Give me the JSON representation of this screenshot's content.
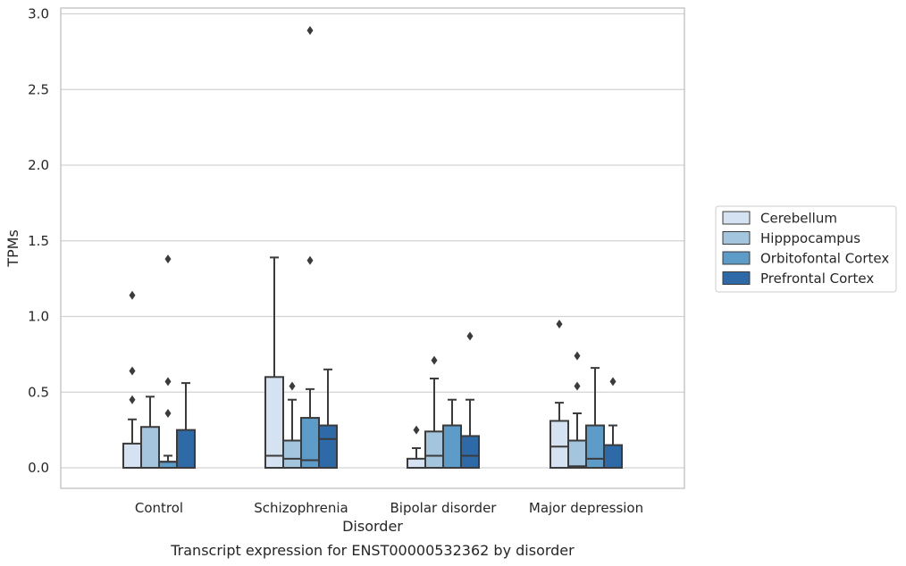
{
  "chart_data": {
    "type": "box",
    "title": "Transcript expression for ENST00000532362 by disorder",
    "xlabel": "Disorder",
    "ylabel": "TPMs",
    "ylim": [
      -0.14,
      3.04
    ],
    "yticks": [
      0.0,
      0.5,
      1.0,
      1.5,
      2.0,
      2.5,
      3.0
    ],
    "ytick_labels": [
      "0.0",
      "0.5",
      "1.0",
      "1.5",
      "2.0",
      "2.5",
      "3.0"
    ],
    "grid": "horizontal",
    "legend_position": "right",
    "categories": [
      "Control",
      "Schizophrenia",
      "Bipolar disorder",
      "Major depression"
    ],
    "series": [
      {
        "name": "Cerebellum",
        "color": "#d4e2f1",
        "boxes": [
          {
            "q1": 0.0,
            "median": 0.0,
            "q3": 0.16,
            "whisker_low": 0.0,
            "whisker_high": 0.32,
            "outliers": [
              0.45,
              0.64,
              1.14
            ]
          },
          {
            "q1": 0.0,
            "median": 0.08,
            "q3": 0.6,
            "whisker_low": 0.0,
            "whisker_high": 1.39,
            "outliers": []
          },
          {
            "q1": 0.0,
            "median": 0.0,
            "q3": 0.06,
            "whisker_low": 0.0,
            "whisker_high": 0.13,
            "outliers": [
              0.25
            ]
          },
          {
            "q1": 0.0,
            "median": 0.14,
            "q3": 0.31,
            "whisker_low": 0.0,
            "whisker_high": 0.43,
            "outliers": [
              0.95
            ]
          }
        ]
      },
      {
        "name": "Hipppocampus",
        "color": "#a3c5de",
        "boxes": [
          {
            "q1": 0.0,
            "median": 0.0,
            "q3": 0.27,
            "whisker_low": 0.0,
            "whisker_high": 0.47,
            "outliers": []
          },
          {
            "q1": 0.0,
            "median": 0.06,
            "q3": 0.18,
            "whisker_low": 0.0,
            "whisker_high": 0.45,
            "outliers": [
              0.54
            ]
          },
          {
            "q1": 0.0,
            "median": 0.08,
            "q3": 0.24,
            "whisker_low": 0.0,
            "whisker_high": 0.59,
            "outliers": [
              0.71
            ]
          },
          {
            "q1": 0.0,
            "median": 0.01,
            "q3": 0.18,
            "whisker_low": 0.0,
            "whisker_high": 0.36,
            "outliers": [
              0.54,
              0.74
            ]
          }
        ]
      },
      {
        "name": "Orbitofontal Cortex",
        "color": "#5d9bc9",
        "boxes": [
          {
            "q1": 0.0,
            "median": 0.04,
            "q3": 0.04,
            "whisker_low": 0.0,
            "whisker_high": 0.08,
            "outliers": [
              0.36,
              0.57,
              1.38
            ]
          },
          {
            "q1": 0.0,
            "median": 0.05,
            "q3": 0.33,
            "whisker_low": 0.0,
            "whisker_high": 0.52,
            "outliers": [
              1.37,
              2.89
            ]
          },
          {
            "q1": 0.0,
            "median": 0.28,
            "q3": 0.28,
            "whisker_low": 0.0,
            "whisker_high": 0.45,
            "outliers": []
          },
          {
            "q1": 0.0,
            "median": 0.06,
            "q3": 0.28,
            "whisker_low": 0.0,
            "whisker_high": 0.66,
            "outliers": []
          }
        ]
      },
      {
        "name": "Prefrontal Cortex",
        "color": "#2e6aa7",
        "boxes": [
          {
            "q1": 0.0,
            "median": 0.0,
            "q3": 0.25,
            "whisker_low": 0.0,
            "whisker_high": 0.56,
            "outliers": []
          },
          {
            "q1": 0.0,
            "median": 0.19,
            "q3": 0.28,
            "whisker_low": 0.0,
            "whisker_high": 0.65,
            "outliers": []
          },
          {
            "q1": 0.0,
            "median": 0.08,
            "q3": 0.21,
            "whisker_low": 0.0,
            "whisker_high": 0.45,
            "outliers": [
              0.87
            ]
          },
          {
            "q1": 0.0,
            "median": 0.0,
            "q3": 0.15,
            "whisker_low": 0.0,
            "whisker_high": 0.28,
            "outliers": [
              0.57
            ]
          }
        ]
      }
    ],
    "colors": {
      "box_edge": "#3b3b3b",
      "grid": "#d3d3d3",
      "frame": "#c8c8c8",
      "outlier": "#3b3b3b"
    }
  }
}
